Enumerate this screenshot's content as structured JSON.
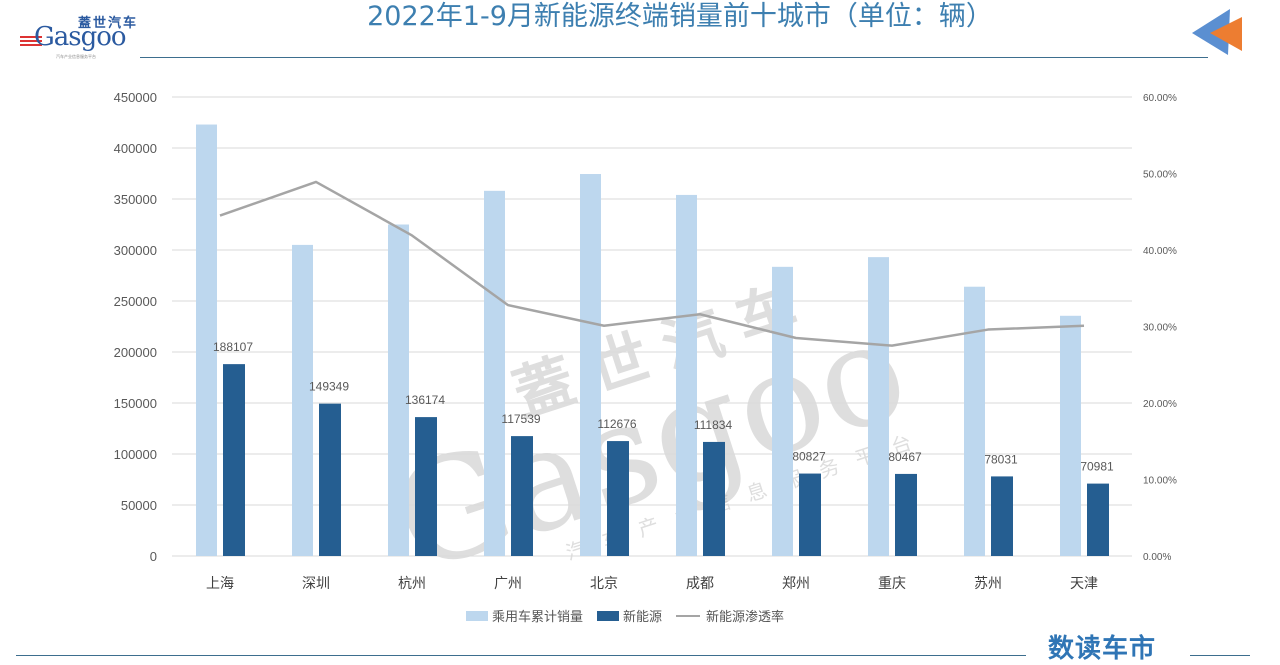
{
  "header": {
    "title": "2022年1-9月新能源终端销量前十城市（单位：辆）",
    "logo_cn": "蓋世汽车",
    "logo_en": "Gasgoo",
    "logo_sub": "汽车产业信息服务平台"
  },
  "footer": {
    "brand": "数读车市"
  },
  "watermark": {
    "cn": "蓋世汽车",
    "en": "Gasgoo",
    "sub": "汽车产业信息服务平台"
  },
  "colors": {
    "total_bar": "#bdd7ee",
    "nev_bar": "#255e91",
    "line": "#a5a5a5",
    "title": "#3d7fb0",
    "brand": "#2f75b5",
    "arrow_blue": "#5b8fd1",
    "arrow_orange": "#ed7d31"
  },
  "legend": {
    "total": "乘用车累计销量",
    "nev": "新能源",
    "rate": "新能源渗透率"
  },
  "chart_data": {
    "type": "bar+line",
    "title": "2022年1-9月新能源终端销量前十城市（单位：辆）",
    "categories": [
      "上海",
      "深圳",
      "杭州",
      "广州",
      "北京",
      "成都",
      "郑州",
      "重庆",
      "苏州",
      "天津"
    ],
    "series": [
      {
        "name": "乘用车累计销量",
        "type": "bar",
        "axis": "left",
        "values": [
          423000,
          305000,
          325000,
          358000,
          374500,
          354000,
          283500,
          293000,
          264000,
          235500
        ]
      },
      {
        "name": "新能源",
        "type": "bar",
        "axis": "left",
        "values": [
          188107,
          149349,
          136174,
          117539,
          112676,
          111834,
          80827,
          80467,
          78031,
          70981
        ],
        "data_labels": true
      },
      {
        "name": "新能源渗透率",
        "type": "line",
        "axis": "right",
        "values": [
          44.5,
          48.9,
          41.9,
          32.8,
          30.1,
          31.6,
          28.5,
          27.5,
          29.6,
          30.1
        ]
      }
    ],
    "left_axis": {
      "min": 0,
      "max": 450000,
      "step": 50000,
      "ticks": [
        "0",
        "50000",
        "100000",
        "150000",
        "200000",
        "250000",
        "300000",
        "350000",
        "400000",
        "450000"
      ]
    },
    "right_axis": {
      "min": 0,
      "max": 60,
      "step": 10,
      "ticks": [
        "0.00%",
        "10.00%",
        "20.00%",
        "30.00%",
        "40.00%",
        "50.00%",
        "60.00%"
      ]
    },
    "grid": true,
    "legend_position": "bottom"
  }
}
